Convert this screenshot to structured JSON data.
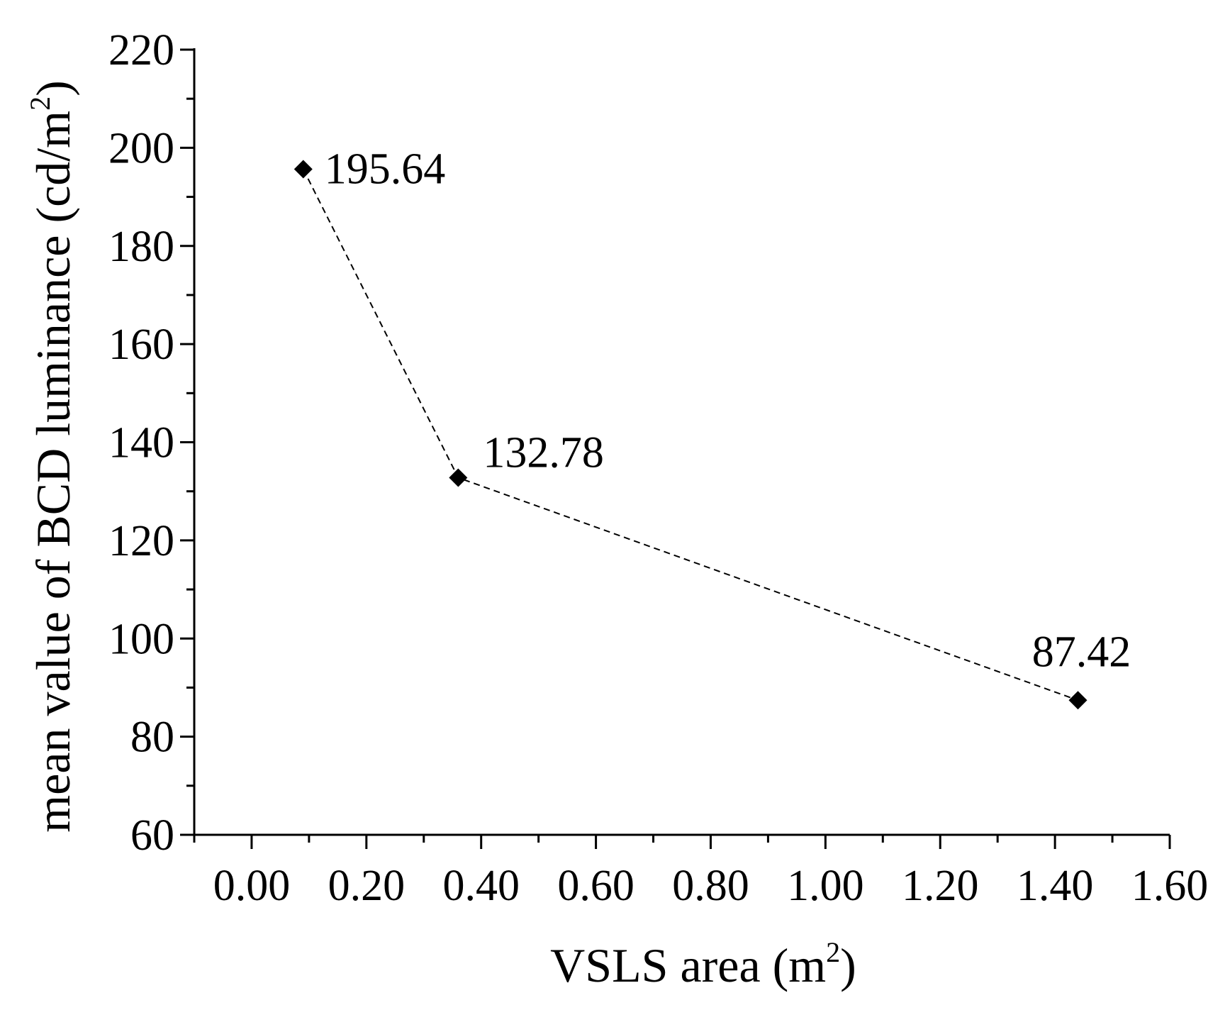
{
  "chart_data": {
    "type": "line",
    "title": "",
    "xlabel": {
      "text": "VSLS area (m",
      "sup": "2",
      "close": ")"
    },
    "ylabel": {
      "text": "mean value of BCD luminance (cd/m",
      "sup": "2",
      "close": ")"
    },
    "xlim": [
      -0.1,
      1.6
    ],
    "ylim": [
      60,
      220
    ],
    "x_ticks": [
      0.0,
      0.2,
      0.4,
      0.6,
      0.8,
      1.0,
      1.2,
      1.4,
      1.6
    ],
    "x_tick_labels": [
      "0.00",
      "0.20",
      "0.40",
      "0.60",
      "0.80",
      "1.00",
      "1.20",
      "1.40",
      "1.60"
    ],
    "y_ticks": [
      60,
      80,
      100,
      120,
      140,
      160,
      180,
      200,
      220
    ],
    "y_tick_labels": [
      "60",
      "80",
      "100",
      "120",
      "140",
      "160",
      "180",
      "200",
      "220"
    ],
    "grid": false,
    "line_style": "dashed",
    "marker": "diamond",
    "color": "#000000",
    "series": [
      {
        "name": "mean value of BCD luminance",
        "x": [
          0.09,
          0.36,
          1.44
        ],
        "y": [
          195.64,
          132.78,
          87.42
        ],
        "labels": [
          "195.64",
          "132.78",
          "87.42"
        ],
        "label_positions": [
          "right",
          "upper-right",
          "above"
        ]
      }
    ]
  }
}
